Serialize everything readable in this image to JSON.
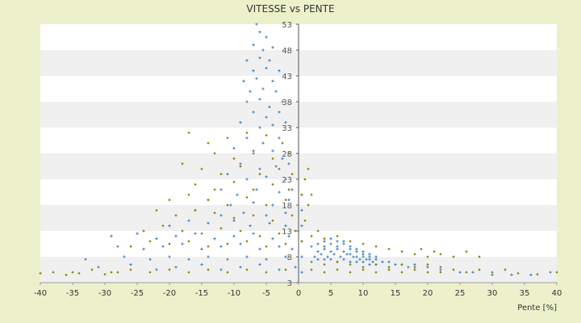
{
  "chart_data": {
    "type": "scatter",
    "title": "VITESSE vs PENTE",
    "xlabel": "Pente [%]",
    "ylabel": "",
    "xlim": [
      -40,
      40
    ],
    "ylim": [
      3,
      53
    ],
    "x_ticks": [
      "-40",
      "-35",
      "-30",
      "-25",
      "-20",
      "-15",
      "-10",
      "-5",
      "0",
      "5",
      "10",
      "15",
      "20",
      "25",
      "30",
      "35",
      "40"
    ],
    "y_ticks": [
      "3",
      "8",
      "13",
      "18",
      "23",
      "28",
      "33",
      "38",
      "43",
      "48",
      "53"
    ],
    "grid": "horizontal bands",
    "legend": "none",
    "colors": {
      "background": "#ecf1cc",
      "plot_band_light": "#ffffff",
      "plot_band_dark": "#f0f0f0",
      "series_blue": "#3d85c6",
      "series_olive": "#8a8a10",
      "axis": "#555555"
    },
    "series": [
      {
        "color": "#3d85c6",
        "points": [
          [
            -6.5,
            53
          ],
          [
            -6,
            51.5
          ],
          [
            -5,
            50.5
          ],
          [
            -7,
            49
          ],
          [
            -5.5,
            48
          ],
          [
            -4,
            48.5
          ],
          [
            -8,
            46
          ],
          [
            -6,
            46.5
          ],
          [
            -4.5,
            46
          ],
          [
            -7,
            44
          ],
          [
            -5,
            44.5
          ],
          [
            -3,
            44
          ],
          [
            -8.5,
            42
          ],
          [
            -6.5,
            42.5
          ],
          [
            -4,
            42
          ],
          [
            -7.5,
            40
          ],
          [
            -5.5,
            40.5
          ],
          [
            -3.5,
            40
          ],
          [
            -8,
            38
          ],
          [
            -6,
            38.5
          ],
          [
            -4.5,
            37
          ],
          [
            -2.5,
            38
          ],
          [
            -7,
            36
          ],
          [
            -5,
            35
          ],
          [
            -3,
            36
          ],
          [
            -9,
            34
          ],
          [
            -6,
            33
          ],
          [
            -4,
            33.5
          ],
          [
            -2,
            34
          ],
          [
            -8,
            31
          ],
          [
            -5.5,
            30
          ],
          [
            -3,
            31
          ],
          [
            -10,
            29
          ],
          [
            -7,
            28
          ],
          [
            -4,
            28.5
          ],
          [
            -2.5,
            27
          ],
          [
            -9,
            26
          ],
          [
            -6,
            25
          ],
          [
            -3.5,
            25.5
          ],
          [
            -1.5,
            26
          ],
          [
            -11,
            24
          ],
          [
            -8,
            23
          ],
          [
            -5,
            23.5
          ],
          [
            -2,
            23
          ],
          [
            -12,
            21
          ],
          [
            -9.5,
            20
          ],
          [
            -6.5,
            21
          ],
          [
            -3,
            20.5
          ],
          [
            -1,
            21
          ],
          [
            -14,
            19
          ],
          [
            -10.5,
            18
          ],
          [
            -7,
            18.5
          ],
          [
            -4,
            18
          ],
          [
            -1.5,
            19
          ],
          [
            -16,
            17
          ],
          [
            -12,
            16
          ],
          [
            -8.5,
            16.5
          ],
          [
            -5,
            16
          ],
          [
            -2,
            16.5
          ],
          [
            -20,
            14
          ],
          [
            -17,
            15
          ],
          [
            -14,
            14.5
          ],
          [
            -10,
            15
          ],
          [
            -7.5,
            14
          ],
          [
            -4.5,
            14.5
          ],
          [
            -2,
            14
          ],
          [
            -29,
            12
          ],
          [
            -25,
            12.5
          ],
          [
            -22,
            11.5
          ],
          [
            -19,
            12
          ],
          [
            -16,
            12.5
          ],
          [
            -13,
            11.5
          ],
          [
            -10,
            12
          ],
          [
            -7,
            12.5
          ],
          [
            -4,
            11.5
          ],
          [
            -1.5,
            12
          ],
          [
            -28,
            10
          ],
          [
            -24,
            9.5
          ],
          [
            -21,
            10
          ],
          [
            -18,
            10.5
          ],
          [
            -15,
            9.5
          ],
          [
            -12,
            10
          ],
          [
            -9,
            10.5
          ],
          [
            -6,
            9.5
          ],
          [
            -3,
            10
          ],
          [
            -1,
            9.5
          ],
          [
            -33,
            7.5
          ],
          [
            -27,
            8
          ],
          [
            -23,
            7.5
          ],
          [
            -20,
            8
          ],
          [
            -17,
            7.5
          ],
          [
            -14,
            8
          ],
          [
            -11,
            7.5
          ],
          [
            -8,
            8
          ],
          [
            -5,
            7.5
          ],
          [
            -2,
            8
          ],
          [
            -31,
            6
          ],
          [
            -26,
            6.5
          ],
          [
            -22,
            5.5
          ],
          [
            -19,
            6
          ],
          [
            -15,
            6.5
          ],
          [
            -12,
            5.5
          ],
          [
            -9,
            6
          ],
          [
            -6,
            6.5
          ],
          [
            -3,
            5.5
          ],
          [
            -0.5,
            6
          ],
          [
            2,
            10
          ],
          [
            3,
            10.5
          ],
          [
            4,
            11
          ],
          [
            5,
            11.5
          ],
          [
            6,
            11
          ],
          [
            7,
            10.5
          ],
          [
            8,
            10
          ],
          [
            9,
            9.5
          ],
          [
            10,
            9
          ],
          [
            11,
            8.5
          ],
          [
            3,
            9
          ],
          [
            4,
            9.5
          ],
          [
            5,
            9
          ],
          [
            6,
            9.5
          ],
          [
            7,
            9
          ],
          [
            8,
            8.5
          ],
          [
            9,
            8
          ],
          [
            10,
            8.5
          ],
          [
            11,
            8
          ],
          [
            12,
            7.5
          ],
          [
            2.5,
            8
          ],
          [
            3.5,
            8.5
          ],
          [
            4.5,
            8
          ],
          [
            5.5,
            8.5
          ],
          [
            6.5,
            8
          ],
          [
            7.5,
            8.5
          ],
          [
            8.5,
            8
          ],
          [
            9.5,
            7.5
          ],
          [
            10.5,
            7.5
          ],
          [
            11.5,
            7
          ],
          [
            3,
            7.5
          ],
          [
            4,
            7.5
          ],
          [
            5,
            7.5
          ],
          [
            6,
            7
          ],
          [
            7,
            7.5
          ],
          [
            8,
            7
          ],
          [
            9,
            7
          ],
          [
            10,
            7
          ],
          [
            11,
            6.5
          ],
          [
            12,
            6.5
          ],
          [
            4,
            10
          ],
          [
            5,
            10.5
          ],
          [
            6,
            10
          ],
          [
            7,
            11
          ],
          [
            8,
            9.5
          ],
          [
            9,
            9
          ],
          [
            10,
            8
          ],
          [
            11,
            7.5
          ],
          [
            12,
            8
          ],
          [
            13,
            7
          ],
          [
            14,
            7
          ],
          [
            15,
            6.5
          ],
          [
            16,
            6.5
          ],
          [
            17,
            6
          ],
          [
            18,
            6.5
          ],
          [
            20,
            6
          ],
          [
            22,
            5.5
          ],
          [
            25,
            5
          ],
          [
            27,
            5
          ],
          [
            30,
            4.5
          ],
          [
            33,
            4.5
          ],
          [
            36,
            4.5
          ],
          [
            39,
            5
          ],
          [
            0.5,
            5
          ],
          [
            0.5,
            8
          ],
          [
            0.5,
            11
          ],
          [
            0.5,
            14
          ],
          [
            0.5,
            17
          ],
          [
            0.5,
            20
          ]
        ]
      },
      {
        "color": "#8a8a10",
        "points": [
          [
            -17,
            32
          ],
          [
            -14,
            30
          ],
          [
            -11,
            31
          ],
          [
            -8,
            32
          ],
          [
            -5,
            31.5
          ],
          [
            -2.5,
            30
          ],
          [
            -13,
            28
          ],
          [
            -10,
            27
          ],
          [
            -7,
            28.5
          ],
          [
            -4,
            27
          ],
          [
            -1.5,
            28
          ],
          [
            -18,
            26
          ],
          [
            -15,
            25
          ],
          [
            -12,
            24
          ],
          [
            -9,
            25.5
          ],
          [
            -6,
            24
          ],
          [
            -3,
            25
          ],
          [
            -1,
            24
          ],
          [
            -16,
            22
          ],
          [
            -13,
            21
          ],
          [
            -10,
            22.5
          ],
          [
            -7,
            21
          ],
          [
            -4,
            22
          ],
          [
            -1.5,
            21
          ],
          [
            -20,
            19
          ],
          [
            -17,
            20
          ],
          [
            -14,
            19
          ],
          [
            -11,
            18
          ],
          [
            -8,
            19.5
          ],
          [
            -5,
            18
          ],
          [
            -2,
            19
          ],
          [
            0.5,
            20
          ],
          [
            -22,
            17
          ],
          [
            -19,
            16
          ],
          [
            -16,
            17
          ],
          [
            -13,
            16.5
          ],
          [
            -10,
            15.5
          ],
          [
            -7,
            16
          ],
          [
            -4,
            15
          ],
          [
            -1,
            16
          ],
          [
            -24,
            13
          ],
          [
            -21,
            14
          ],
          [
            -18,
            13
          ],
          [
            -15,
            12.5
          ],
          [
            -12,
            13.5
          ],
          [
            -9,
            13
          ],
          [
            -6,
            12
          ],
          [
            -3,
            12.5
          ],
          [
            -0.5,
            13
          ],
          [
            -26,
            10
          ],
          [
            -23,
            11
          ],
          [
            -20,
            10.5
          ],
          [
            -17,
            11
          ],
          [
            -14,
            10
          ],
          [
            -11,
            10.5
          ],
          [
            -8,
            11
          ],
          [
            -5,
            10
          ],
          [
            -2,
            10.5
          ],
          [
            0.5,
            11
          ],
          [
            -35,
            5
          ],
          [
            -32,
            5.5
          ],
          [
            -29,
            5
          ],
          [
            -26,
            5.5
          ],
          [
            -23,
            5
          ],
          [
            -20,
            5.5
          ],
          [
            -17,
            5
          ],
          [
            -14,
            5.5
          ],
          [
            -11,
            5
          ],
          [
            -8,
            5.5
          ],
          [
            -5,
            5
          ],
          [
            -2,
            5.5
          ],
          [
            -40,
            4.8
          ],
          [
            -38,
            5
          ],
          [
            -36,
            4.5
          ],
          [
            -34,
            4.8
          ],
          [
            -30,
            4.6
          ],
          [
            -28,
            5
          ],
          [
            2,
            5.5
          ],
          [
            4,
            5
          ],
          [
            6,
            5.5
          ],
          [
            8,
            5
          ],
          [
            10,
            5.5
          ],
          [
            12,
            5
          ],
          [
            14,
            5.5
          ],
          [
            16,
            5
          ],
          [
            18,
            5.5
          ],
          [
            20,
            5
          ],
          [
            22,
            5
          ],
          [
            24,
            5.5
          ],
          [
            26,
            5
          ],
          [
            28,
            5.5
          ],
          [
            30,
            5
          ],
          [
            32,
            5.5
          ],
          [
            34,
            4.8
          ],
          [
            37,
            4.6
          ],
          [
            40,
            5
          ],
          [
            2,
            12
          ],
          [
            3,
            13
          ],
          [
            4,
            11.5
          ],
          [
            6,
            12
          ],
          [
            8,
            11
          ],
          [
            10,
            10.5
          ],
          [
            12,
            10
          ],
          [
            14,
            9.5
          ],
          [
            16,
            9
          ],
          [
            18,
            8.5
          ],
          [
            19,
            9.5
          ],
          [
            20,
            8
          ],
          [
            21,
            9
          ],
          [
            22,
            8.5
          ],
          [
            24,
            8
          ],
          [
            26,
            9
          ],
          [
            28,
            8
          ],
          [
            2,
            7
          ],
          [
            4,
            6.5
          ],
          [
            6,
            7
          ],
          [
            8,
            6.5
          ],
          [
            10,
            6
          ],
          [
            12,
            6.5
          ],
          [
            14,
            6
          ],
          [
            16,
            6.5
          ],
          [
            18,
            6
          ],
          [
            20,
            6.5
          ],
          [
            22,
            6
          ],
          [
            1,
            15
          ],
          [
            1.5,
            18
          ],
          [
            2,
            20
          ],
          [
            1,
            23
          ],
          [
            1.5,
            25
          ]
        ]
      }
    ]
  }
}
